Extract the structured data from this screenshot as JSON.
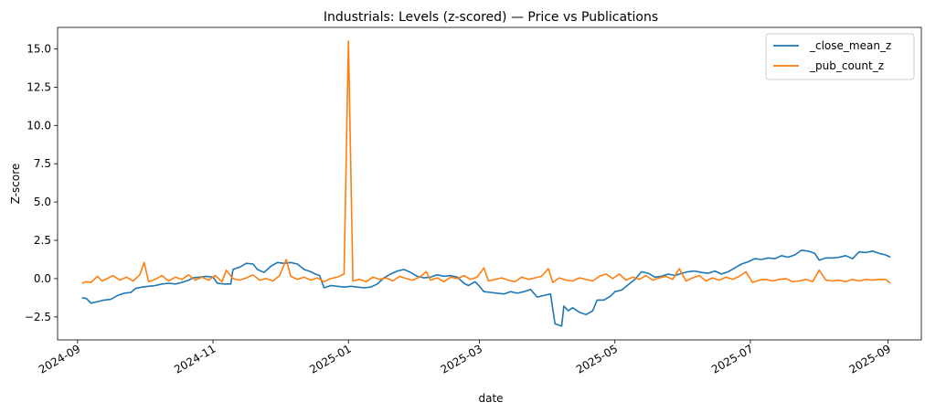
{
  "chart_data": {
    "type": "line",
    "title": "Industrials: Levels (z-scored) — Price vs Publications",
    "xlabel": "date",
    "ylabel": "Z-score",
    "x_axis": "date",
    "xlim": [
      "2024-08-23",
      "2025-09-16"
    ],
    "ylim": [
      -4.0,
      16.4
    ],
    "x_ticks": [
      "2024-09",
      "2024-11",
      "2025-01",
      "2025-03",
      "2025-05",
      "2025-07",
      "2025-09"
    ],
    "x_tick_dates": [
      "2024-09-01",
      "2024-11-01",
      "2025-01-01",
      "2025-03-01",
      "2025-05-01",
      "2025-07-01",
      "2025-09-01"
    ],
    "y_ticks": [
      "−2.5",
      "0.0",
      "2.5",
      "5.0",
      "7.5",
      "10.0",
      "12.5",
      "15.0"
    ],
    "y_tick_values": [
      -2.5,
      0,
      2.5,
      5,
      7.5,
      10,
      12.5,
      15
    ],
    "grid": false,
    "legend_position": "top-right",
    "series": [
      {
        "name": "_close_mean_z",
        "color": "#1f77b4",
        "points": [
          [
            "2024-09-03",
            -1.25
          ],
          [
            "2024-09-05",
            -1.3
          ],
          [
            "2024-09-07",
            -1.6
          ],
          [
            "2024-09-10",
            -1.5
          ],
          [
            "2024-09-13",
            -1.4
          ],
          [
            "2024-09-16",
            -1.35
          ],
          [
            "2024-09-19",
            -1.1
          ],
          [
            "2024-09-22",
            -0.95
          ],
          [
            "2024-09-25",
            -0.9
          ],
          [
            "2024-09-27",
            -0.65
          ],
          [
            "2024-09-30",
            -0.55
          ],
          [
            "2024-10-03",
            -0.5
          ],
          [
            "2024-10-06",
            -0.45
          ],
          [
            "2024-10-09",
            -0.35
          ],
          [
            "2024-10-12",
            -0.3
          ],
          [
            "2024-10-15",
            -0.35
          ],
          [
            "2024-10-18",
            -0.25
          ],
          [
            "2024-10-21",
            -0.1
          ],
          [
            "2024-10-23",
            0.05
          ],
          [
            "2024-10-26",
            0.1
          ],
          [
            "2024-10-29",
            0.15
          ],
          [
            "2024-11-01",
            0.1
          ],
          [
            "2024-11-03",
            -0.3
          ],
          [
            "2024-11-06",
            -0.35
          ],
          [
            "2024-11-09",
            -0.35
          ],
          [
            "2024-11-10",
            0.6
          ],
          [
            "2024-11-13",
            0.75
          ],
          [
            "2024-11-16",
            1.0
          ],
          [
            "2024-11-19",
            0.95
          ],
          [
            "2024-11-21",
            0.6
          ],
          [
            "2024-11-24",
            0.4
          ],
          [
            "2024-11-27",
            0.8
          ],
          [
            "2024-11-30",
            1.05
          ],
          [
            "2024-12-03",
            1.0
          ],
          [
            "2024-12-06",
            1.05
          ],
          [
            "2024-12-09",
            0.95
          ],
          [
            "2024-12-12",
            0.6
          ],
          [
            "2024-12-15",
            0.45
          ],
          [
            "2024-12-17",
            0.3
          ],
          [
            "2024-12-19",
            0.2
          ],
          [
            "2024-12-21",
            -0.6
          ],
          [
            "2024-12-24",
            -0.45
          ],
          [
            "2024-12-27",
            -0.5
          ],
          [
            "2024-12-30",
            -0.55
          ],
          [
            "2025-01-02",
            -0.5
          ],
          [
            "2025-01-05",
            -0.55
          ],
          [
            "2025-01-08",
            -0.6
          ],
          [
            "2025-01-11",
            -0.55
          ],
          [
            "2025-01-14",
            -0.35
          ],
          [
            "2025-01-17",
            0.05
          ],
          [
            "2025-01-20",
            0.3
          ],
          [
            "2025-01-23",
            0.5
          ],
          [
            "2025-01-26",
            0.6
          ],
          [
            "2025-01-29",
            0.4
          ],
          [
            "2025-02-01",
            0.15
          ],
          [
            "2025-02-04",
            0.05
          ],
          [
            "2025-02-07",
            0.1
          ],
          [
            "2025-02-10",
            0.25
          ],
          [
            "2025-02-13",
            0.15
          ],
          [
            "2025-02-16",
            0.2
          ],
          [
            "2025-02-19",
            0.1
          ],
          [
            "2025-02-22",
            -0.3
          ],
          [
            "2025-02-24",
            -0.45
          ],
          [
            "2025-02-27",
            -0.2
          ],
          [
            "2025-03-01",
            -0.5
          ],
          [
            "2025-03-03",
            -0.85
          ],
          [
            "2025-03-06",
            -0.9
          ],
          [
            "2025-03-09",
            -0.95
          ],
          [
            "2025-03-12",
            -1.0
          ],
          [
            "2025-03-15",
            -0.85
          ],
          [
            "2025-03-18",
            -0.95
          ],
          [
            "2025-03-21",
            -0.85
          ],
          [
            "2025-03-24",
            -0.7
          ],
          [
            "2025-03-27",
            -1.2
          ],
          [
            "2025-03-30",
            -1.1
          ],
          [
            "2025-04-02",
            -1.0
          ],
          [
            "2025-04-04",
            -2.95
          ],
          [
            "2025-04-07",
            -3.1
          ],
          [
            "2025-04-08",
            -1.8
          ],
          [
            "2025-04-10",
            -2.1
          ],
          [
            "2025-04-12",
            -1.9
          ],
          [
            "2025-04-15",
            -2.2
          ],
          [
            "2025-04-18",
            -2.35
          ],
          [
            "2025-04-21",
            -2.1
          ],
          [
            "2025-04-23",
            -1.4
          ],
          [
            "2025-04-26",
            -1.4
          ],
          [
            "2025-04-29",
            -1.15
          ],
          [
            "2025-05-01",
            -0.85
          ],
          [
            "2025-05-04",
            -0.75
          ],
          [
            "2025-05-07",
            -0.4
          ],
          [
            "2025-05-10",
            -0.05
          ],
          [
            "2025-05-13",
            0.45
          ],
          [
            "2025-05-16",
            0.35
          ],
          [
            "2025-05-19",
            0.1
          ],
          [
            "2025-05-22",
            0.15
          ],
          [
            "2025-05-25",
            0.3
          ],
          [
            "2025-05-28",
            0.2
          ],
          [
            "2025-05-31",
            0.35
          ],
          [
            "2025-06-03",
            0.45
          ],
          [
            "2025-06-06",
            0.5
          ],
          [
            "2025-06-09",
            0.4
          ],
          [
            "2025-06-12",
            0.35
          ],
          [
            "2025-06-15",
            0.5
          ],
          [
            "2025-06-18",
            0.3
          ],
          [
            "2025-06-21",
            0.45
          ],
          [
            "2025-06-24",
            0.7
          ],
          [
            "2025-06-27",
            0.95
          ],
          [
            "2025-06-30",
            1.1
          ],
          [
            "2025-07-03",
            1.3
          ],
          [
            "2025-07-06",
            1.25
          ],
          [
            "2025-07-09",
            1.35
          ],
          [
            "2025-07-12",
            1.3
          ],
          [
            "2025-07-15",
            1.5
          ],
          [
            "2025-07-18",
            1.4
          ],
          [
            "2025-07-21",
            1.55
          ],
          [
            "2025-07-24",
            1.85
          ],
          [
            "2025-07-27",
            1.8
          ],
          [
            "2025-07-30",
            1.65
          ],
          [
            "2025-08-01",
            1.2
          ],
          [
            "2025-08-04",
            1.35
          ],
          [
            "2025-08-07",
            1.35
          ],
          [
            "2025-08-10",
            1.4
          ],
          [
            "2025-08-13",
            1.5
          ],
          [
            "2025-08-16",
            1.3
          ],
          [
            "2025-08-19",
            1.75
          ],
          [
            "2025-08-22",
            1.7
          ],
          [
            "2025-08-25",
            1.8
          ],
          [
            "2025-08-28",
            1.65
          ],
          [
            "2025-08-31",
            1.55
          ],
          [
            "2025-09-02",
            1.4
          ]
        ]
      },
      {
        "name": "_pub_count_z",
        "color": "#ff7f0e",
        "points": [
          [
            "2024-09-03",
            -0.3
          ],
          [
            "2024-09-05",
            -0.2
          ],
          [
            "2024-09-07",
            -0.25
          ],
          [
            "2024-09-10",
            0.15
          ],
          [
            "2024-09-12",
            -0.15
          ],
          [
            "2024-09-15",
            0.05
          ],
          [
            "2024-09-17",
            0.2
          ],
          [
            "2024-09-20",
            -0.1
          ],
          [
            "2024-09-23",
            0.1
          ],
          [
            "2024-09-26",
            -0.15
          ],
          [
            "2024-09-29",
            0.25
          ],
          [
            "2024-10-01",
            1.05
          ],
          [
            "2024-10-03",
            -0.2
          ],
          [
            "2024-10-06",
            -0.05
          ],
          [
            "2024-10-09",
            0.2
          ],
          [
            "2024-10-12",
            -0.15
          ],
          [
            "2024-10-15",
            0.1
          ],
          [
            "2024-10-18",
            -0.05
          ],
          [
            "2024-10-21",
            0.25
          ],
          [
            "2024-10-24",
            -0.1
          ],
          [
            "2024-10-27",
            0.1
          ],
          [
            "2024-10-30",
            -0.1
          ],
          [
            "2024-11-02",
            0.2
          ],
          [
            "2024-11-05",
            -0.2
          ],
          [
            "2024-11-07",
            0.55
          ],
          [
            "2024-11-10",
            0.0
          ],
          [
            "2024-11-13",
            -0.1
          ],
          [
            "2024-11-16",
            0.05
          ],
          [
            "2024-11-19",
            0.25
          ],
          [
            "2024-11-22",
            -0.1
          ],
          [
            "2024-11-25",
            0.0
          ],
          [
            "2024-11-28",
            -0.15
          ],
          [
            "2024-12-01",
            0.2
          ],
          [
            "2024-12-04",
            1.25
          ],
          [
            "2024-12-06",
            0.15
          ],
          [
            "2024-12-09",
            -0.05
          ],
          [
            "2024-12-12",
            0.1
          ],
          [
            "2024-12-15",
            -0.1
          ],
          [
            "2024-12-18",
            0.05
          ],
          [
            "2024-12-21",
            -0.2
          ],
          [
            "2024-12-24",
            0.0
          ],
          [
            "2024-12-27",
            0.1
          ],
          [
            "2024-12-30",
            0.3
          ],
          [
            "2025-01-01",
            15.5
          ],
          [
            "2025-01-03",
            -0.15
          ],
          [
            "2025-01-06",
            -0.05
          ],
          [
            "2025-01-09",
            -0.2
          ],
          [
            "2025-01-12",
            0.1
          ],
          [
            "2025-01-15",
            -0.05
          ],
          [
            "2025-01-18",
            0.05
          ],
          [
            "2025-01-21",
            -0.15
          ],
          [
            "2025-01-24",
            0.15
          ],
          [
            "2025-01-27",
            0.0
          ],
          [
            "2025-01-30",
            -0.1
          ],
          [
            "2025-02-02",
            0.1
          ],
          [
            "2025-02-05",
            0.45
          ],
          [
            "2025-02-07",
            -0.1
          ],
          [
            "2025-02-10",
            0.05
          ],
          [
            "2025-02-13",
            -0.2
          ],
          [
            "2025-02-16",
            0.1
          ],
          [
            "2025-02-19",
            0.0
          ],
          [
            "2025-02-22",
            0.2
          ],
          [
            "2025-02-25",
            -0.05
          ],
          [
            "2025-02-28",
            0.1
          ],
          [
            "2025-03-03",
            0.7
          ],
          [
            "2025-03-05",
            -0.15
          ],
          [
            "2025-03-08",
            -0.05
          ],
          [
            "2025-03-11",
            0.05
          ],
          [
            "2025-03-14",
            -0.1
          ],
          [
            "2025-03-17",
            -0.2
          ],
          [
            "2025-03-20",
            0.1
          ],
          [
            "2025-03-23",
            -0.05
          ],
          [
            "2025-03-26",
            0.05
          ],
          [
            "2025-03-29",
            0.15
          ],
          [
            "2025-04-01",
            0.65
          ],
          [
            "2025-04-03",
            -0.25
          ],
          [
            "2025-04-06",
            0.05
          ],
          [
            "2025-04-09",
            -0.1
          ],
          [
            "2025-04-12",
            -0.15
          ],
          [
            "2025-04-15",
            0.05
          ],
          [
            "2025-04-18",
            -0.05
          ],
          [
            "2025-04-21",
            -0.15
          ],
          [
            "2025-04-24",
            0.15
          ],
          [
            "2025-04-27",
            0.3
          ],
          [
            "2025-04-30",
            0.0
          ],
          [
            "2025-05-03",
            0.3
          ],
          [
            "2025-05-06",
            -0.1
          ],
          [
            "2025-05-09",
            0.1
          ],
          [
            "2025-05-12",
            -0.05
          ],
          [
            "2025-05-15",
            0.2
          ],
          [
            "2025-05-18",
            -0.1
          ],
          [
            "2025-05-21",
            0.05
          ],
          [
            "2025-05-24",
            0.15
          ],
          [
            "2025-05-27",
            -0.05
          ],
          [
            "2025-05-30",
            0.65
          ],
          [
            "2025-06-02",
            -0.15
          ],
          [
            "2025-06-05",
            0.05
          ],
          [
            "2025-06-08",
            0.2
          ],
          [
            "2025-06-11",
            -0.15
          ],
          [
            "2025-06-14",
            0.05
          ],
          [
            "2025-06-17",
            -0.1
          ],
          [
            "2025-06-20",
            0.1
          ],
          [
            "2025-06-23",
            -0.05
          ],
          [
            "2025-06-26",
            0.15
          ],
          [
            "2025-06-29",
            0.45
          ],
          [
            "2025-07-02",
            -0.25
          ],
          [
            "2025-07-05",
            -0.1
          ],
          [
            "2025-07-08",
            -0.05
          ],
          [
            "2025-07-11",
            -0.15
          ],
          [
            "2025-07-14",
            -0.05
          ],
          [
            "2025-07-17",
            0.0
          ],
          [
            "2025-07-20",
            -0.2
          ],
          [
            "2025-07-23",
            -0.15
          ],
          [
            "2025-07-26",
            -0.05
          ],
          [
            "2025-07-29",
            -0.2
          ],
          [
            "2025-08-01",
            0.55
          ],
          [
            "2025-08-04",
            -0.1
          ],
          [
            "2025-08-07",
            -0.15
          ],
          [
            "2025-08-10",
            -0.1
          ],
          [
            "2025-08-13",
            -0.2
          ],
          [
            "2025-08-16",
            -0.05
          ],
          [
            "2025-08-19",
            -0.15
          ],
          [
            "2025-08-22",
            -0.05
          ],
          [
            "2025-08-25",
            -0.1
          ],
          [
            "2025-08-28",
            -0.05
          ],
          [
            "2025-08-31",
            -0.05
          ],
          [
            "2025-09-02",
            -0.3
          ]
        ]
      }
    ]
  }
}
